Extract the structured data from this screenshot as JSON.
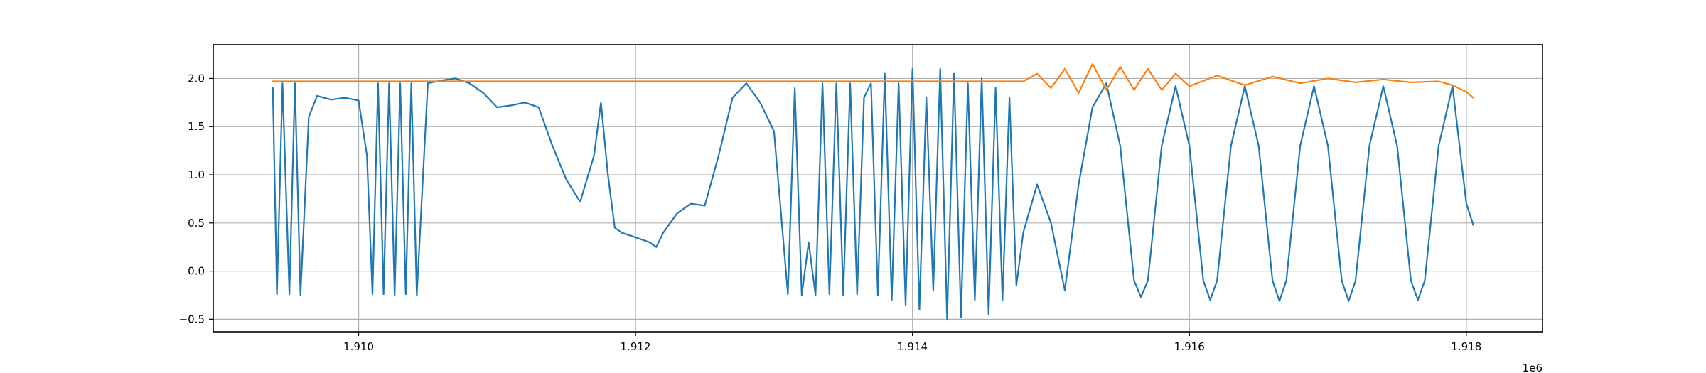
{
  "colors": {
    "series_1": "#1f77b4",
    "series_2": "#ff7f0e",
    "grid": "#b0b0b0",
    "axes": "#000000",
    "background": "#ffffff"
  },
  "chart_data": {
    "type": "line",
    "title": "",
    "xlabel": "",
    "ylabel": "",
    "x_offset_label": "1e6",
    "xlim": [
      1908950,
      1918550
    ],
    "ylim": [
      -0.63,
      2.35
    ],
    "grid": true,
    "legend": "none",
    "x_ticks": [
      1910000,
      1912000,
      1914000,
      1916000,
      1918000
    ],
    "x_tick_labels": [
      "1.910",
      "1.912",
      "1.914",
      "1.916",
      "1.918"
    ],
    "y_ticks": [
      -0.5,
      0.0,
      0.5,
      1.0,
      1.5,
      2.0
    ],
    "y_tick_labels": [
      "−0.5",
      "0.0",
      "0.5",
      "1.0",
      "1.5",
      "2.0"
    ],
    "series": [
      {
        "color": "#1f77b4",
        "x": [
          1909380,
          1909410,
          1909450,
          1909500,
          1909540,
          1909580,
          1909640,
          1909700,
          1909800,
          1909900,
          1910000,
          1910060,
          1910100,
          1910140,
          1910180,
          1910220,
          1910260,
          1910300,
          1910340,
          1910380,
          1910420,
          1910500,
          1910600,
          1910700,
          1910800,
          1910900,
          1911000,
          1911100,
          1911200,
          1911300,
          1911400,
          1911500,
          1911600,
          1911700,
          1911750,
          1911800,
          1911850,
          1911900,
          1912000,
          1912100,
          1912150,
          1912200,
          1912300,
          1912400,
          1912500,
          1912600,
          1912700,
          1912800,
          1912900,
          1913000,
          1913100,
          1913150,
          1913200,
          1913250,
          1913300,
          1913350,
          1913400,
          1913450,
          1913500,
          1913550,
          1913600,
          1913650,
          1913700,
          1913750,
          1913800,
          1913850,
          1913900,
          1913950,
          1914000,
          1914050,
          1914100,
          1914150,
          1914200,
          1914250,
          1914300,
          1914350,
          1914400,
          1914450,
          1914500,
          1914550,
          1914600,
          1914650,
          1914700,
          1914750,
          1914800,
          1914900,
          1915000,
          1915100,
          1915200,
          1915300,
          1915400,
          1915500,
          1915600,
          1915650,
          1915700,
          1915800,
          1915900,
          1916000,
          1916100,
          1916150,
          1916200,
          1916300,
          1916400,
          1916500,
          1916600,
          1916650,
          1916700,
          1916800,
          1916900,
          1917000,
          1917100,
          1917150,
          1917200,
          1917300,
          1917400,
          1917500,
          1917600,
          1917650,
          1917700,
          1917800,
          1917900,
          1918000,
          1918050
        ],
        "y": [
          1.9,
          -0.24,
          1.95,
          -0.24,
          1.95,
          -0.25,
          1.6,
          1.82,
          1.78,
          1.8,
          1.77,
          1.2,
          -0.24,
          1.95,
          -0.24,
          1.95,
          -0.25,
          1.95,
          -0.24,
          1.95,
          -0.25,
          1.95,
          1.98,
          2.0,
          1.95,
          1.85,
          1.7,
          1.72,
          1.75,
          1.7,
          1.3,
          0.95,
          0.72,
          1.2,
          1.75,
          1.0,
          0.45,
          0.4,
          0.35,
          0.3,
          0.25,
          0.4,
          0.6,
          0.7,
          0.68,
          1.2,
          1.8,
          1.95,
          1.75,
          1.45,
          -0.24,
          1.9,
          -0.25,
          0.3,
          -0.25,
          1.95,
          -0.24,
          1.95,
          -0.25,
          1.95,
          -0.24,
          1.8,
          1.95,
          -0.25,
          2.05,
          -0.3,
          1.95,
          -0.35,
          2.1,
          -0.4,
          1.8,
          -0.2,
          2.1,
          -0.5,
          2.05,
          -0.48,
          1.95,
          -0.3,
          2.0,
          -0.45,
          1.9,
          -0.3,
          1.8,
          -0.15,
          0.4,
          0.9,
          0.5,
          -0.2,
          0.9,
          1.7,
          1.95,
          1.3,
          -0.1,
          -0.27,
          -0.1,
          1.3,
          1.92,
          1.3,
          -0.1,
          -0.3,
          -0.1,
          1.3,
          1.92,
          1.3,
          -0.1,
          -0.31,
          -0.1,
          1.3,
          1.92,
          1.3,
          -0.1,
          -0.31,
          -0.1,
          1.3,
          1.92,
          1.3,
          -0.1,
          -0.3,
          -0.1,
          1.3,
          1.92,
          0.7,
          0.48
        ]
      },
      {
        "color": "#ff7f0e",
        "x": [
          1909380,
          1909500,
          1910000,
          1910500,
          1911000,
          1911500,
          1912000,
          1912500,
          1913000,
          1913500,
          1914000,
          1914500,
          1914800,
          1914900,
          1915000,
          1915100,
          1915200,
          1915300,
          1915400,
          1915500,
          1915600,
          1915700,
          1915800,
          1915900,
          1916000,
          1916200,
          1916400,
          1916600,
          1916800,
          1917000,
          1917200,
          1917400,
          1917600,
          1917800,
          1917900,
          1918000,
          1918050
        ],
        "y": [
          1.97,
          1.97,
          1.97,
          1.97,
          1.97,
          1.97,
          1.97,
          1.97,
          1.97,
          1.97,
          1.97,
          1.97,
          1.97,
          2.05,
          1.9,
          2.1,
          1.85,
          2.15,
          1.88,
          2.12,
          1.88,
          2.1,
          1.88,
          2.05,
          1.92,
          2.03,
          1.93,
          2.02,
          1.95,
          2.0,
          1.96,
          1.99,
          1.96,
          1.97,
          1.93,
          1.86,
          1.8
        ]
      }
    ]
  }
}
